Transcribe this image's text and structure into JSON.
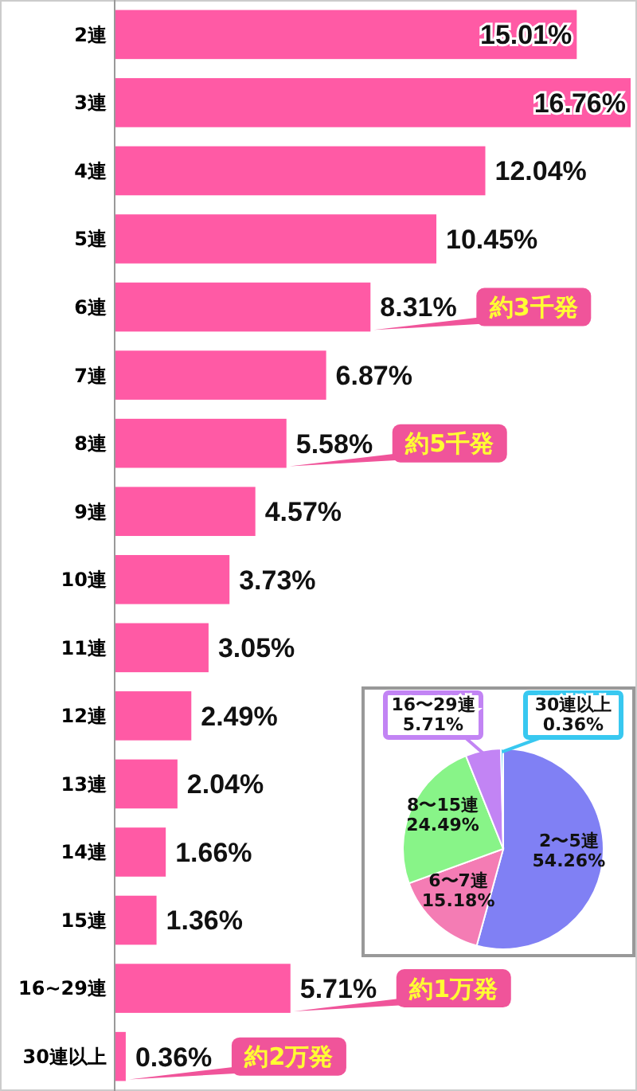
{
  "chart_data": [
    {
      "type": "bar",
      "orientation": "horizontal",
      "categories": [
        "2連",
        "3連",
        "4連",
        "5連",
        "6連",
        "7連",
        "8連",
        "9連",
        "10連",
        "11連",
        "12連",
        "13連",
        "14連",
        "15連",
        "16~29連",
        "30連以上"
      ],
      "values": [
        15.01,
        16.76,
        12.04,
        10.45,
        8.31,
        6.87,
        5.58,
        4.57,
        3.73,
        3.05,
        2.49,
        2.04,
        1.66,
        1.36,
        5.71,
        0.36
      ],
      "value_labels": [
        "15.01%",
        "16.76%",
        "12.04%",
        "10.45%",
        "8.31%",
        "6.87%",
        "5.58%",
        "4.57%",
        "3.73%",
        "3.05%",
        "2.49%",
        "2.04%",
        "1.66%",
        "1.36%",
        "5.71%",
        "0.36%"
      ],
      "color": "#ff5aa5",
      "annotations": [
        {
          "text": "約3千発",
          "x": 8.31,
          "y": "6連"
        },
        {
          "text": "約5千発",
          "x": 5.58,
          "y": "8連"
        },
        {
          "text": "約1万発",
          "x": 5.71,
          "y": "16~29連"
        },
        {
          "text": "約2万発",
          "x": 0.36,
          "y": "30連以上"
        }
      ]
    },
    {
      "type": "pie",
      "categories": [
        "2〜5連",
        "6〜7連",
        "8〜15連",
        "16〜29連",
        "30連以上"
      ],
      "values": [
        54.26,
        15.18,
        24.49,
        5.71,
        0.36
      ],
      "value_labels": [
        "54.26%",
        "15.18%",
        "24.49%",
        "5.71%",
        "0.36%"
      ],
      "colors": [
        "#8080f4",
        "#f47cb4",
        "#88f488",
        "#c284f4",
        "#38c8f0"
      ]
    }
  ]
}
